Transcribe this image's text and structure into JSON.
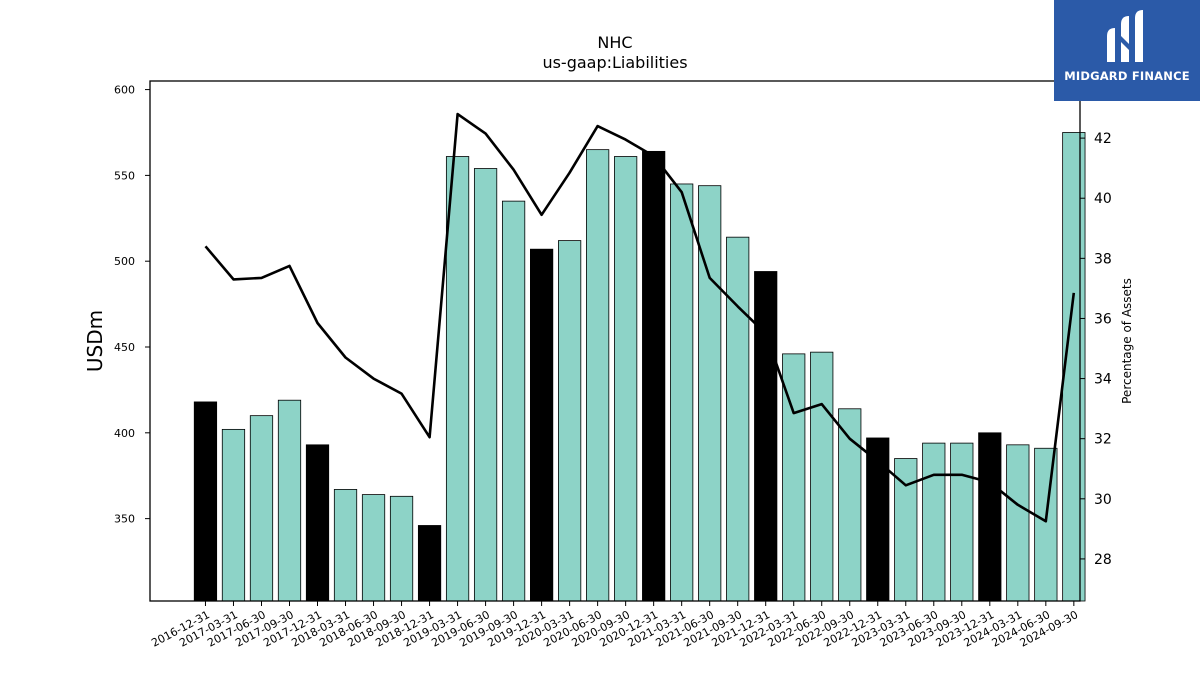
{
  "logo": {
    "text": "MIDGARD FINANCE",
    "mark": "midgard-logo-mark",
    "background": "#2b5aa8"
  },
  "chart_data": {
    "type": "bar",
    "title": "NHC",
    "subtitle": "us-gaap:Liabilities",
    "ylabel": "USDm",
    "y2label": "Percentage of Assets",
    "ylim": [
      302,
      605
    ],
    "y2lim": [
      26.6,
      43.9
    ],
    "yticks": [
      350,
      400,
      450,
      500,
      550,
      600
    ],
    "y2ticks": [
      28,
      30,
      32,
      34,
      36,
      38,
      40,
      42
    ],
    "categories": [
      "2016-12-31",
      "2017-03-31",
      "2017-06-30",
      "2017-09-30",
      "2017-12-31",
      "2018-03-31",
      "2018-06-30",
      "2018-09-30",
      "2018-12-31",
      "2019-03-31",
      "2019-06-30",
      "2019-09-30",
      "2019-12-31",
      "2020-03-31",
      "2020-06-30",
      "2020-09-30",
      "2020-12-31",
      "2021-03-31",
      "2021-06-30",
      "2021-09-30",
      "2021-12-31",
      "2022-03-31",
      "2022-06-30",
      "2022-09-30",
      "2022-12-31",
      "2023-03-31",
      "2023-06-30",
      "2023-09-30",
      "2023-12-31",
      "2024-03-31",
      "2024-06-30",
      "2024-09-30"
    ],
    "series": [
      {
        "kind": "bar",
        "axis": "left",
        "values": [
          418,
          402,
          410,
          419,
          393,
          367,
          364,
          363,
          346,
          561,
          554,
          535,
          507,
          512,
          565,
          561,
          564,
          545,
          544,
          514,
          494,
          446,
          447,
          414,
          397,
          385,
          394,
          394,
          400,
          393,
          391,
          575
        ],
        "year_end": [
          true,
          false,
          false,
          false,
          true,
          false,
          false,
          false,
          true,
          false,
          false,
          false,
          true,
          false,
          false,
          false,
          true,
          false,
          false,
          false,
          true,
          false,
          false,
          false,
          true,
          false,
          false,
          false,
          true,
          false,
          false,
          false
        ]
      },
      {
        "kind": "line",
        "axis": "right",
        "values": [
          38.4,
          37.3,
          37.35,
          37.75,
          35.85,
          34.7,
          34.0,
          33.5,
          32.05,
          42.8,
          42.15,
          40.95,
          39.45,
          40.85,
          42.4,
          41.95,
          41.4,
          40.2,
          37.35,
          36.4,
          35.5,
          32.85,
          33.15,
          32.0,
          31.25,
          30.45,
          30.8,
          30.8,
          30.55,
          29.8,
          29.25,
          36.85
        ]
      }
    ],
    "colors": {
      "bar": "#8dd3c7",
      "bar_year_end": "#000000",
      "line": "#000000"
    },
    "grid": false,
    "legend": "none"
  }
}
